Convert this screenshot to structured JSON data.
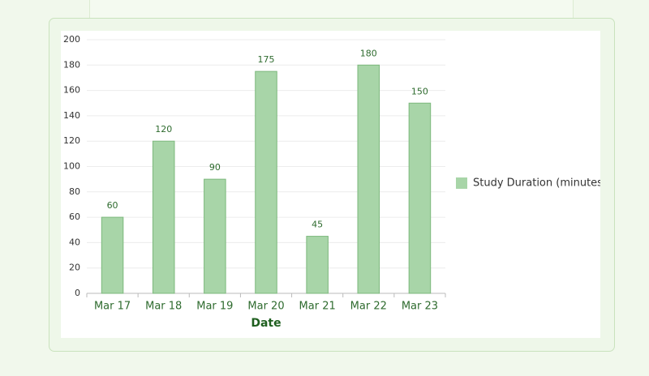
{
  "chart_data": {
    "type": "bar",
    "x_label": "Date",
    "categories": [
      "Mar 17",
      "Mar 18",
      "Mar 19",
      "Mar 20",
      "Mar 21",
      "Mar 22",
      "Mar 23"
    ],
    "series": [
      {
        "name": "Study Duration (minutes)",
        "color": "#a8d5a8",
        "values": [
          60,
          120,
          90,
          175,
          45,
          180,
          150
        ]
      }
    ],
    "ylim": [
      0,
      200
    ],
    "yticks": [
      0,
      20,
      40,
      60,
      80,
      100,
      120,
      140,
      160,
      180,
      200
    ],
    "grid": true,
    "legend": "right"
  }
}
